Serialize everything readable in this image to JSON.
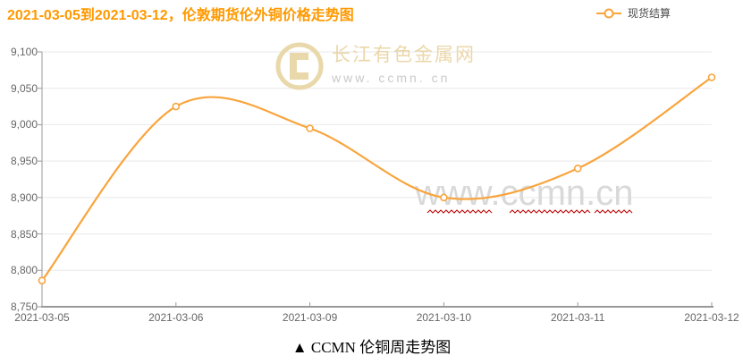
{
  "header": {
    "title": "2021-03-05到2021-03-12，伦敦期货伦外铜价格走势图"
  },
  "legend": {
    "label": "现货结算"
  },
  "chart_data": {
    "type": "line",
    "title": "2021-03-05到2021-03-12，伦敦期货伦外铜价格走势图",
    "categories": [
      "2021-03-05",
      "2021-03-06",
      "2021-03-09",
      "2021-03-10",
      "2021-03-11",
      "2021-03-12"
    ],
    "series": [
      {
        "name": "现货结算",
        "values": [
          8786,
          9025,
          8995,
          8900,
          8940,
          9065
        ]
      }
    ],
    "ylim": [
      8750,
      9100
    ],
    "ytick_step": 50,
    "xlabel": "",
    "ylabel": "",
    "grid": true,
    "smooth": true,
    "marker": "hollow-circle",
    "legend_position": "top-right"
  },
  "watermarks": {
    "logo_glyph": "C",
    "logo_title": "长江有色金属网",
    "logo_url": "www. ccmn. cn",
    "center_url": "www.ccmn.cn"
  },
  "caption": {
    "text": "▲ CCMN 伦铜周走势图"
  },
  "colors": {
    "title": "#FF9900",
    "line": "#F9A43C",
    "axis_label": "#666666",
    "axis_line": "#999999",
    "grid_line": "#E9E9E9",
    "watermark_gold": "#E8D8AA",
    "watermark_gray": "#D9D9D9",
    "zigzag_red": "#C00000"
  }
}
